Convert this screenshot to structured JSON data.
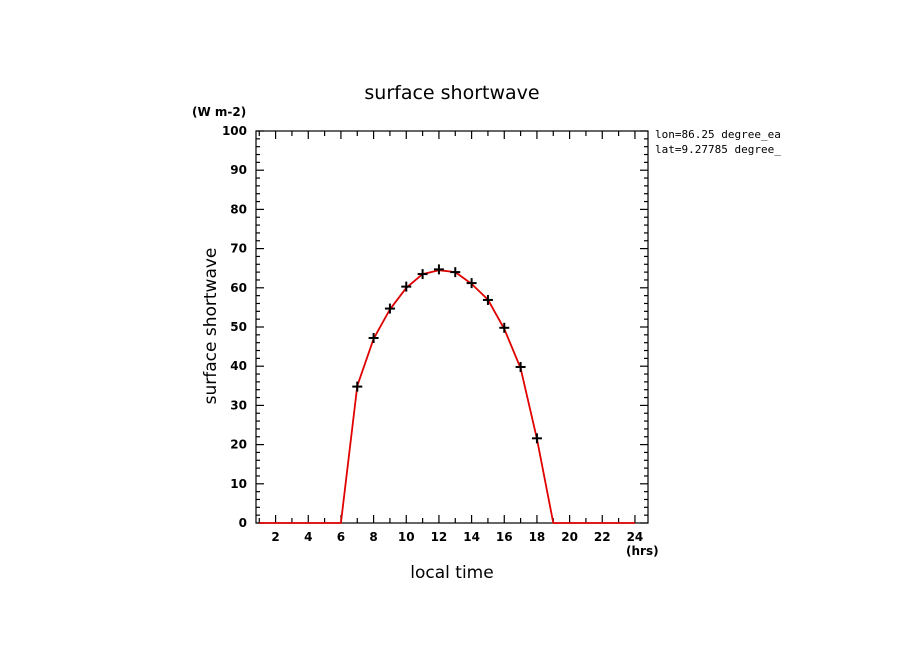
{
  "chart_data": {
    "type": "line",
    "title": "surface shortwave",
    "xlabel": "local time",
    "ylabel": "surface shortwave",
    "x_units": "(hrs)",
    "y_units": "(W m-2)",
    "annotations": [
      "lon=86.25 degree_ea",
      "lat=9.27785 degree_"
    ],
    "xlim": [
      0.8,
      24.8
    ],
    "ylim": [
      0,
      100
    ],
    "x_ticks": [
      2,
      4,
      6,
      8,
      10,
      12,
      14,
      16,
      18,
      20,
      22,
      24
    ],
    "x_tick_labels": [
      "2",
      "4",
      "6",
      "8",
      "10",
      "12",
      "14",
      "16",
      "18",
      "20",
      "22",
      "24"
    ],
    "y_ticks": [
      0,
      10,
      20,
      30,
      40,
      50,
      60,
      70,
      80,
      90,
      100
    ],
    "y_tick_labels": [
      "0",
      "10",
      "20",
      "30",
      "40",
      "50",
      "60",
      "70",
      "80",
      "90",
      "100"
    ],
    "grid": false,
    "line_color": "#e00000",
    "marker_color": "#000000",
    "series": [
      {
        "style": "line",
        "x": [
          1,
          2,
          3,
          4,
          5,
          6,
          7,
          8,
          9,
          10,
          11,
          12,
          13,
          14,
          15,
          16,
          17,
          18,
          19,
          20,
          21,
          22,
          23,
          24
        ],
        "values": [
          0,
          0,
          0,
          0,
          0,
          0,
          35,
          47,
          54.5,
          60,
          63.5,
          64.5,
          64,
          61,
          57,
          49.5,
          39.5,
          21.5,
          0,
          0,
          0,
          0,
          0,
          0
        ]
      },
      {
        "style": "plus-markers",
        "x": [
          7,
          8,
          9,
          10,
          11,
          12,
          13,
          14,
          15,
          16,
          17,
          18
        ],
        "values": [
          34.8,
          47.2,
          54.7,
          60.3,
          63.5,
          64.7,
          64.0,
          61.2,
          56.9,
          49.8,
          39.8,
          21.6
        ]
      }
    ]
  }
}
